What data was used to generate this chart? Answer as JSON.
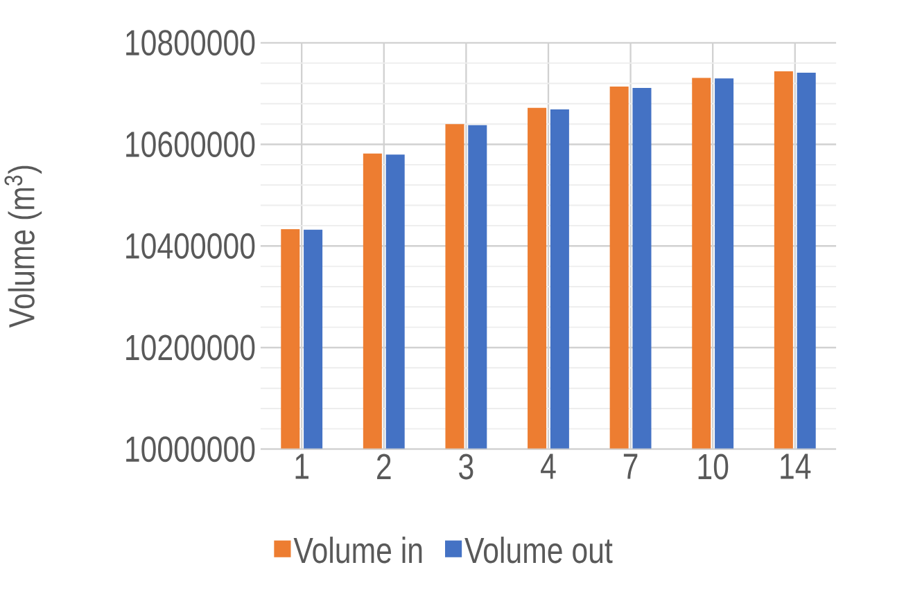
{
  "chart_data": {
    "type": "bar",
    "ylabel": "Volume (m$^{3}$)",
    "categories": [
      "1",
      "2",
      "3",
      "4",
      "7",
      "10",
      "14"
    ],
    "series": [
      {
        "name": "Volume in",
        "color": "#ed7d31",
        "values": [
          10433000,
          10582000,
          10640000,
          10672000,
          10714000,
          10731000,
          10744000
        ]
      },
      {
        "name": "Volume out",
        "color": "#4472c4",
        "values": [
          10432000,
          10580000,
          10638000,
          10669000,
          10711000,
          10730000,
          10741000
        ]
      }
    ],
    "ylim": [
      10000000,
      10800000
    ],
    "yticks": [
      10000000,
      10200000,
      10400000,
      10600000,
      10800000
    ],
    "grid": true,
    "legend": "bottom"
  }
}
